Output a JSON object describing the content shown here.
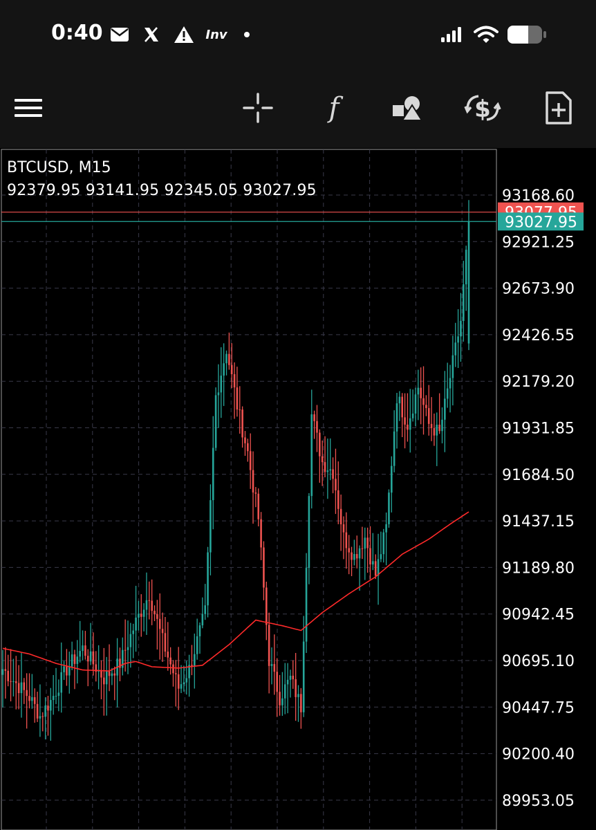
{
  "status_bar": {
    "time": "0:40",
    "notification_icons": [
      "mail-icon",
      "x-logo-icon",
      "warning-icon",
      "investing-app-icon",
      "dot-icon"
    ],
    "investing_label": "Inv",
    "system_icons": [
      "signal-icon",
      "wifi-icon",
      "battery-icon"
    ]
  },
  "toolbar": {
    "buttons": [
      "menu-icon",
      "crosshair-icon",
      "indicator-f-icon",
      "objects-icon",
      "trade-dollar-icon",
      "new-order-icon"
    ],
    "indicator_label": "f"
  },
  "chart": {
    "symbol": "BTCUSD, M15",
    "ohlc": "92379.95 93141.95 92345.05 93027.95",
    "ask_price_label": "93077.95",
    "bid_price_label": "93027.95",
    "colors": {
      "background": "#000000",
      "bull": "#26a69a",
      "bear": "#ef5350",
      "moving_average": "#ff2a2a",
      "grid": "#3a3a4a",
      "ask_line": "#ef5350",
      "bid_line": "#26a69a"
    }
  },
  "chart_data": {
    "type": "candlestick",
    "symbol": "BTCUSD",
    "timeframe": "M15",
    "last_bar": {
      "open": 92379.95,
      "high": 93141.95,
      "low": 92345.05,
      "close": 93027.95
    },
    "ask": 93077.95,
    "bid": 93027.95,
    "y_ticks": [
      "93168.60",
      "92921.25",
      "92673.90",
      "92426.55",
      "92179.20",
      "91931.85",
      "91684.50",
      "91437.15",
      "91189.80",
      "90942.45",
      "90695.10",
      "90447.75",
      "90200.40",
      "89953.05"
    ],
    "ylim": [
      89900,
      93230
    ],
    "grid": true,
    "bar_count": 176,
    "candle_keypoints": [
      [
        0,
        90650
      ],
      [
        10,
        90500
      ],
      [
        14,
        90400
      ],
      [
        18,
        90480
      ],
      [
        24,
        90650
      ],
      [
        30,
        90760
      ],
      [
        38,
        90600
      ],
      [
        44,
        90680
      ],
      [
        50,
        90900
      ],
      [
        55,
        91050
      ],
      [
        60,
        90800
      ],
      [
        66,
        90550
      ],
      [
        70,
        90650
      ],
      [
        76,
        90950
      ],
      [
        80,
        92100
      ],
      [
        84,
        92350
      ],
      [
        88,
        92050
      ],
      [
        92,
        91800
      ],
      [
        96,
        91450
      ],
      [
        100,
        90700
      ],
      [
        104,
        90500
      ],
      [
        108,
        90600
      ],
      [
        112,
        90450
      ],
      [
        116,
        92000
      ],
      [
        120,
        91750
      ],
      [
        124,
        91700
      ],
      [
        128,
        91350
      ],
      [
        132,
        91250
      ],
      [
        136,
        91350
      ],
      [
        140,
        91150
      ],
      [
        144,
        91400
      ],
      [
        148,
        92100
      ],
      [
        152,
        91950
      ],
      [
        156,
        92150
      ],
      [
        160,
        91950
      ],
      [
        164,
        91900
      ],
      [
        168,
        92200
      ],
      [
        172,
        92500
      ],
      [
        175,
        93028
      ]
    ],
    "moving_average_keypoints": [
      [
        0,
        90760
      ],
      [
        10,
        90730
      ],
      [
        20,
        90680
      ],
      [
        30,
        90645
      ],
      [
        40,
        90640
      ],
      [
        46,
        90680
      ],
      [
        50,
        90690
      ],
      [
        56,
        90662
      ],
      [
        66,
        90655
      ],
      [
        75,
        90670
      ],
      [
        85,
        90780
      ],
      [
        95,
        90910
      ],
      [
        105,
        90880
      ],
      [
        112,
        90855
      ],
      [
        120,
        90950
      ],
      [
        130,
        91050
      ],
      [
        140,
        91140
      ],
      [
        150,
        91260
      ],
      [
        160,
        91340
      ],
      [
        168,
        91420
      ],
      [
        175,
        91485
      ]
    ]
  }
}
